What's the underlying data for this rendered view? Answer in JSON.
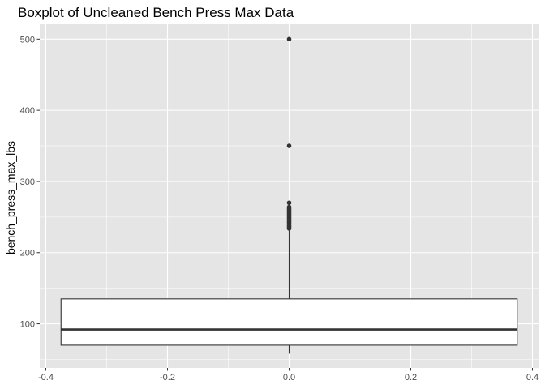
{
  "chart_data": {
    "type": "boxplot",
    "title": "Boxplot of Uncleaned Bench Press Max Data",
    "xlabel": "",
    "ylabel": "bench_press_max_lbs",
    "xlim": [
      -0.41,
      0.41
    ],
    "ylim": [
      38,
      522
    ],
    "x_ticks": [
      -0.4,
      -0.2,
      0.0,
      0.2,
      0.4
    ],
    "x_tick_labels": [
      "-0.4",
      "-0.2",
      "0.0",
      "0.2",
      "0.4"
    ],
    "y_ticks": [
      100,
      200,
      300,
      400,
      500
    ],
    "y_tick_labels": [
      "100",
      "200",
      "300",
      "400",
      "500"
    ],
    "grid": true,
    "legend": "none",
    "box": {
      "x_center": 0.0,
      "x_min": -0.375,
      "x_max": 0.375,
      "lower_whisker": 58,
      "q1": 70,
      "median": 92,
      "q3": 135,
      "upper_whisker": 232
    },
    "outliers": [
      500,
      350,
      270,
      264,
      262,
      260,
      258,
      256,
      254,
      252,
      250,
      248,
      246,
      244,
      242,
      240,
      238,
      236,
      234
    ],
    "colors": {
      "panel": "#e5e5e5",
      "grid": "#ffffff",
      "box_fill": "#ffffff",
      "box_line": "#333333",
      "point": "#333333"
    }
  }
}
